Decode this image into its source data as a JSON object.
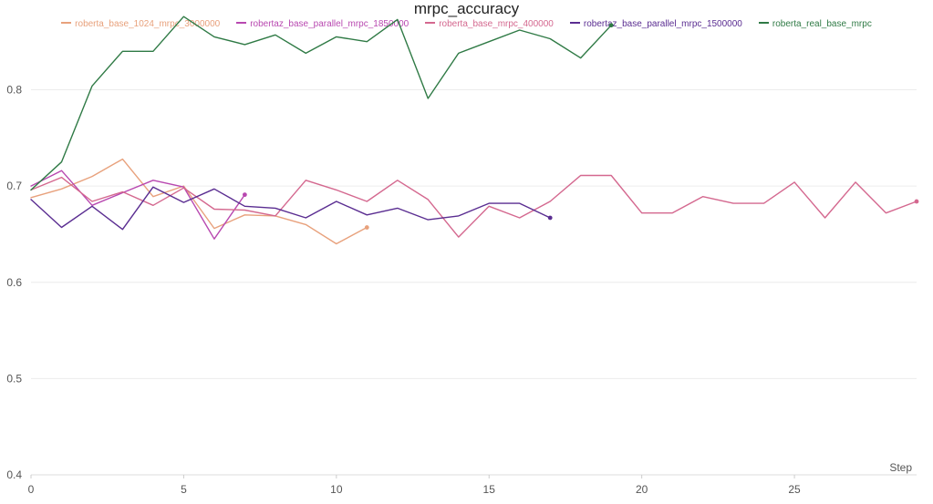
{
  "chart_data": {
    "type": "line",
    "title": "mrpc_accuracy",
    "xlabel": "Step",
    "ylabel": "",
    "xlim": [
      0,
      29
    ],
    "ylim": [
      0.4,
      0.88
    ],
    "xticks": [
      0,
      5,
      10,
      15,
      20,
      25
    ],
    "yticks": [
      0.4,
      0.5,
      0.6,
      0.7,
      0.8
    ],
    "legend_position": "top-center",
    "series": [
      {
        "name": "roberta_base_1024_mrpc_3000000",
        "color": "#e8a17c",
        "x": [
          0,
          1,
          2,
          3,
          4,
          5,
          6,
          7,
          8,
          9,
          10,
          11
        ],
        "y": [
          0.688,
          0.697,
          0.71,
          0.728,
          0.689,
          0.7,
          0.656,
          0.67,
          0.669,
          0.66,
          0.64,
          0.657
        ]
      },
      {
        "name": "robertaz_base_parallel_mrpc_1850000",
        "color": "#b848b0",
        "x": [
          0,
          1,
          2,
          3,
          4,
          5,
          6,
          7
        ],
        "y": [
          0.7,
          0.716,
          0.68,
          0.693,
          0.706,
          0.699,
          0.645,
          0.691
        ]
      },
      {
        "name": "roberta_base_mrpc_400000",
        "color": "#d4688f",
        "x": [
          0,
          1,
          2,
          3,
          4,
          5,
          6,
          7,
          8,
          9,
          10,
          11,
          12,
          13,
          14,
          15,
          16,
          17,
          18,
          19,
          20,
          21,
          22,
          23,
          24,
          25,
          26,
          27,
          28,
          29
        ],
        "y": [
          0.696,
          0.709,
          0.684,
          0.694,
          0.68,
          0.698,
          0.676,
          0.675,
          0.669,
          0.706,
          0.696,
          0.684,
          0.706,
          0.686,
          0.647,
          0.679,
          0.667,
          0.684,
          0.711,
          0.711,
          0.672,
          0.672,
          0.689,
          0.682,
          0.682,
          0.704,
          0.667,
          0.704,
          0.672,
          0.684
        ]
      },
      {
        "name": "robertaz_base_parallel_mrpc_1500000",
        "color": "#5a2d91",
        "x": [
          0,
          1,
          2,
          3,
          4,
          5,
          6,
          7,
          8,
          9,
          10,
          11,
          12,
          13,
          14,
          15,
          16,
          17
        ],
        "y": [
          0.686,
          0.657,
          0.679,
          0.655,
          0.699,
          0.683,
          0.697,
          0.679,
          0.677,
          0.667,
          0.684,
          0.67,
          0.677,
          0.665,
          0.669,
          0.682,
          0.682,
          0.667
        ]
      },
      {
        "name": "roberta_real_base_mrpc",
        "color": "#2f7a45",
        "x": [
          0,
          1,
          2,
          3,
          4,
          5,
          6,
          7,
          8,
          9,
          10,
          11,
          12,
          13,
          14,
          15,
          16,
          17,
          18,
          19
        ],
        "y": [
          0.696,
          0.725,
          0.804,
          0.84,
          0.84,
          0.876,
          0.855,
          0.847,
          0.857,
          0.838,
          0.855,
          0.85,
          0.873,
          0.791,
          0.838,
          0.85,
          0.862,
          0.853,
          0.833,
          0.867
        ]
      }
    ]
  }
}
